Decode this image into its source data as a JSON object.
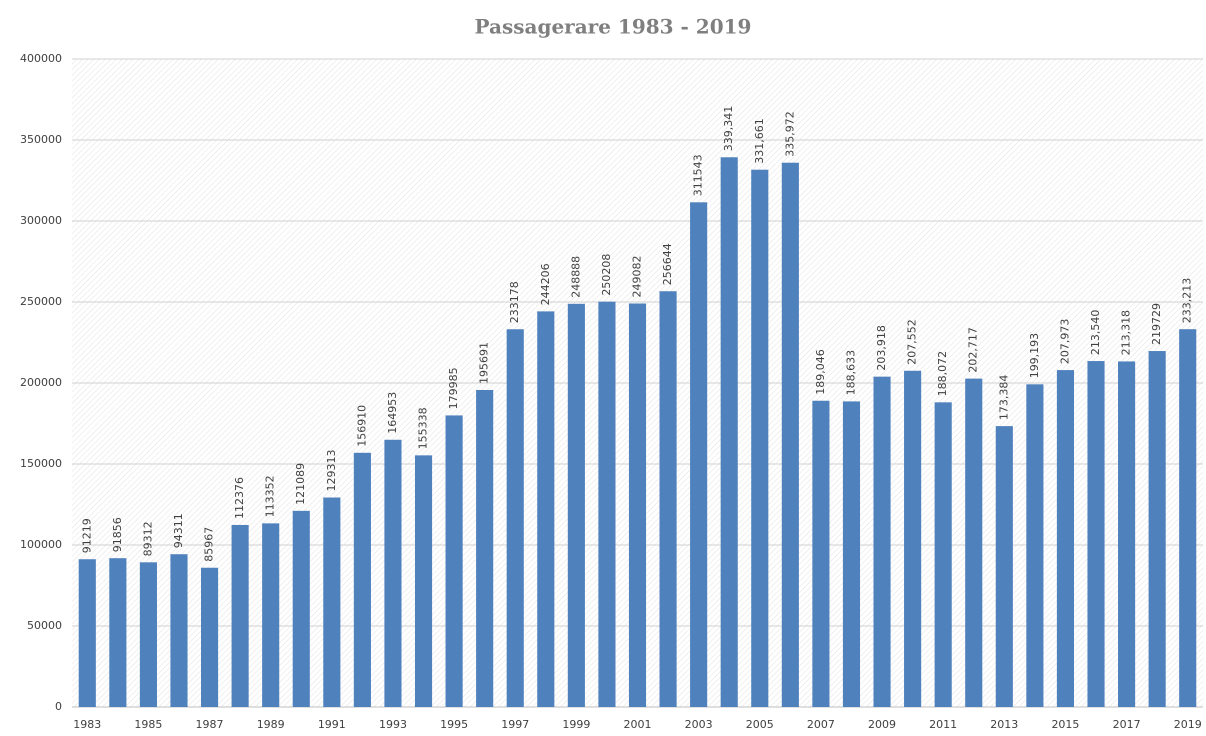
{
  "chart_data": {
    "type": "bar",
    "title": "Passagerare 1983 - 2019",
    "categories": [
      "1983",
      null,
      "1985",
      null,
      "1987",
      null,
      "1989",
      null,
      "1991",
      null,
      "1993",
      null,
      "1995",
      null,
      "1997",
      null,
      "1999",
      null,
      "2001",
      null,
      "2003",
      null,
      "2005",
      null,
      "2007",
      null,
      "2009",
      null,
      "2011",
      null,
      "2013",
      null,
      "2015",
      null,
      "2017",
      null,
      "2019"
    ],
    "values": [
      91219,
      91856,
      89312,
      94311,
      85967,
      112376,
      113352,
      121089,
      129313,
      156910,
      164953,
      155338,
      179985,
      195691,
      233178,
      244206,
      248888,
      250208,
      249082,
      256644,
      311543,
      339341,
      331661,
      335972,
      189046,
      188633,
      203918,
      207552,
      188072,
      202717,
      173384,
      199193,
      207973,
      213540,
      213318,
      219729,
      233213
    ],
    "value_labels": [
      "91219",
      "91856",
      "89312",
      "94311",
      "85967",
      "112376",
      "113352",
      "121089",
      "129313",
      "156910",
      "164953",
      "155338",
      "179985",
      "195691",
      "233178",
      "244206",
      "248888",
      "250208",
      "249082",
      "256644",
      "311543",
      "339,341",
      "331,661",
      "335,972",
      "189,046",
      "188,633",
      "203,918",
      "207,552",
      "188,072",
      "202,717",
      "173,384",
      "199,193",
      "207,973",
      "213,540",
      "213,318",
      "219729",
      "233,213"
    ],
    "color": "#4f81bd",
    "ylim": [
      0,
      400000
    ],
    "yticks": [
      0,
      50000,
      100000,
      150000,
      200000,
      250000,
      300000,
      350000,
      400000
    ],
    "grid": true
  }
}
